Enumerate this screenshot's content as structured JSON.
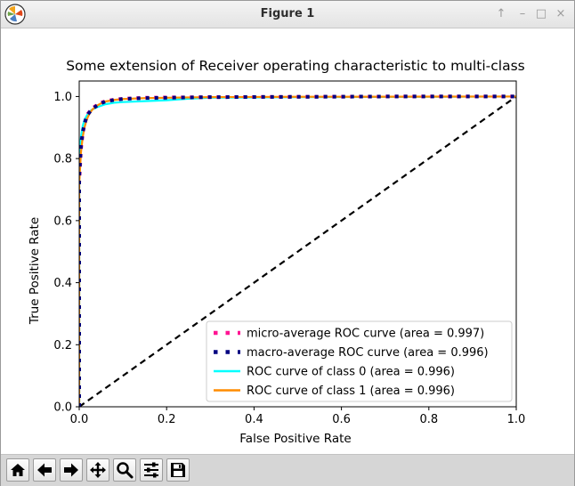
{
  "window": {
    "title": "Figure 1",
    "controls": [
      "pin-icon",
      "minimize-icon",
      "maximize-icon",
      "close-icon"
    ],
    "control_glyphs": {
      "pin": "↑",
      "minimize": "–",
      "maximize": "□",
      "close": "×"
    }
  },
  "toolbar": {
    "buttons": [
      "home-icon",
      "back-icon",
      "forward-icon",
      "pan-icon",
      "zoom-icon",
      "configure-subplots-icon",
      "save-icon"
    ]
  },
  "chart_data": {
    "type": "line",
    "title": "Some extension of Receiver operating characteristic to multi-class",
    "xlabel": "False Positive Rate",
    "ylabel": "True Positive Rate",
    "xlim": [
      0.0,
      1.0
    ],
    "ylim": [
      0.0,
      1.05
    ],
    "xticks": [
      "0.0",
      "0.2",
      "0.4",
      "0.6",
      "0.8",
      "1.0"
    ],
    "yticks": [
      "0.0",
      "0.2",
      "0.4",
      "0.6",
      "0.8",
      "1.0"
    ],
    "xtick_values": [
      0.0,
      0.2,
      0.4,
      0.6,
      0.8,
      1.0
    ],
    "ytick_values": [
      0.0,
      0.2,
      0.4,
      0.6,
      0.8,
      1.0
    ],
    "grid": false,
    "legend_position": "lower-right",
    "series": [
      {
        "name": "micro-average ROC curve (area = 0.997)",
        "color": "#ff1493",
        "style": "dotted",
        "x": [
          0.0,
          0.0,
          0.004,
          0.008,
          0.012,
          0.016,
          0.02,
          0.03,
          0.04,
          0.05,
          0.06,
          0.08,
          0.1,
          0.15,
          0.2,
          0.3,
          0.5,
          0.7,
          1.0
        ],
        "y": [
          0.0,
          0.72,
          0.83,
          0.88,
          0.91,
          0.93,
          0.945,
          0.962,
          0.972,
          0.98,
          0.985,
          0.99,
          0.993,
          0.996,
          0.997,
          0.998,
          0.999,
          1.0,
          1.0
        ]
      },
      {
        "name": "macro-average ROC curve (area = 0.996)",
        "color": "#000080",
        "style": "dotted",
        "x": [
          0.0,
          0.0,
          0.004,
          0.008,
          0.012,
          0.016,
          0.02,
          0.03,
          0.04,
          0.05,
          0.06,
          0.08,
          0.1,
          0.15,
          0.2,
          0.3,
          0.5,
          0.7,
          1.0
        ],
        "y": [
          0.0,
          0.74,
          0.84,
          0.885,
          0.912,
          0.93,
          0.943,
          0.96,
          0.97,
          0.978,
          0.984,
          0.989,
          0.992,
          0.995,
          0.996,
          0.998,
          0.999,
          1.0,
          1.0
        ]
      },
      {
        "name": "ROC curve of class 0 (area = 0.996)",
        "color": "#00ffff",
        "style": "solid",
        "x": [
          0.0,
          0.0,
          0.004,
          0.008,
          0.012,
          0.016,
          0.02,
          0.025,
          0.03,
          0.04,
          0.05,
          0.06,
          0.08,
          0.1,
          0.15,
          0.2,
          0.25,
          0.3,
          0.5,
          1.0
        ],
        "y": [
          0.0,
          0.8,
          0.87,
          0.905,
          0.925,
          0.935,
          0.945,
          0.953,
          0.958,
          0.965,
          0.97,
          0.975,
          0.98,
          0.982,
          0.985,
          0.988,
          0.993,
          0.996,
          0.998,
          1.0
        ]
      },
      {
        "name": "ROC curve of class 1 (area = 0.996)",
        "color": "#ff8c00",
        "style": "solid",
        "x": [
          0.0,
          0.0,
          0.004,
          0.008,
          0.012,
          0.016,
          0.02,
          0.025,
          0.03,
          0.04,
          0.05,
          0.06,
          0.08,
          0.1,
          0.15,
          0.2,
          0.3,
          0.5,
          1.0
        ],
        "y": [
          0.0,
          0.72,
          0.82,
          0.87,
          0.9,
          0.92,
          0.935,
          0.948,
          0.958,
          0.97,
          0.978,
          0.984,
          0.989,
          0.992,
          0.995,
          0.996,
          0.998,
          0.999,
          1.0
        ]
      }
    ],
    "reference_line": {
      "x": [
        0.0,
        1.0
      ],
      "y": [
        0.0,
        1.0
      ],
      "color": "#000000",
      "style": "dashed"
    }
  }
}
